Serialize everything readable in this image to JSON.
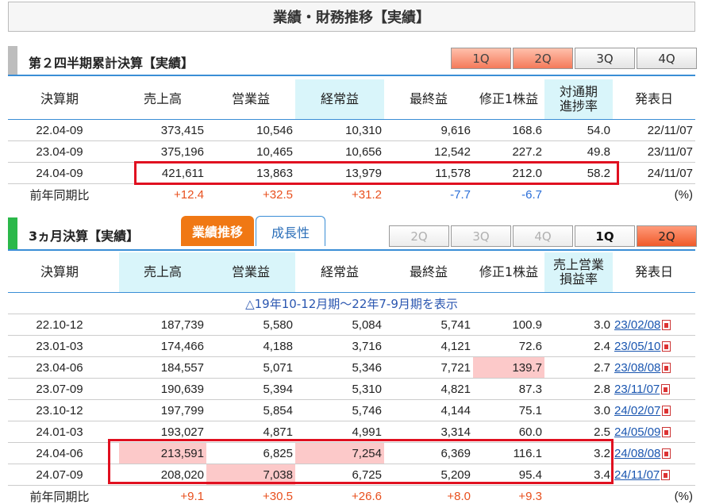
{
  "page_title": "業績・財務推移【実績】",
  "cumulative": {
    "title": "第２四半期累計決算【実績】",
    "tabs": [
      "1Q",
      "2Q",
      "3Q",
      "4Q"
    ],
    "headers": [
      "決算期",
      "売上高",
      "営業益",
      "経常益",
      "最終益",
      "修正1株益",
      "対通期\n進捗率",
      "発表日"
    ],
    "rows": [
      {
        "period": "22.04-09",
        "sales": "373,415",
        "op": "10,546",
        "ord": "10,310",
        "net": "9,616",
        "eps": "168.6",
        "prog": "54.0",
        "date": "22/11/07"
      },
      {
        "period": "23.04-09",
        "sales": "375,196",
        "op": "10,465",
        "ord": "10,656",
        "net": "12,542",
        "eps": "227.2",
        "prog": "49.8",
        "date": "23/11/07"
      },
      {
        "period": "24.04-09",
        "sales": "421,611",
        "op": "13,863",
        "ord": "13,979",
        "net": "11,578",
        "eps": "212.0",
        "prog": "58.2",
        "date": "24/11/07"
      }
    ],
    "yoy": {
      "label": "前年同期比",
      "sales": "+12.4",
      "op": "+32.5",
      "ord": "+31.2",
      "net": "-7.7",
      "eps": "-6.7",
      "unit": "(%)"
    }
  },
  "quarterly": {
    "title": "3ヵ月決算【実績】",
    "tab_a": "業績推移",
    "tab_b": "成長性",
    "tabs": [
      "2Q",
      "3Q",
      "4Q",
      "1Q",
      "2Q"
    ],
    "headers": [
      "決算期",
      "売上高",
      "営業益",
      "経常益",
      "最終益",
      "修正1株益",
      "売上営業\n損益率",
      "発表日"
    ],
    "notice": "△19年10-12月期～22年7-9月期を表示",
    "rows": [
      {
        "period": "22.10-12",
        "sales": "187,739",
        "op": "5,580",
        "ord": "5,084",
        "net": "5,741",
        "eps": "100.9",
        "margin": "3.0",
        "date": "23/02/08"
      },
      {
        "period": "23.01-03",
        "sales": "174,466",
        "op": "4,188",
        "ord": "3,716",
        "net": "4,121",
        "eps": "72.6",
        "margin": "2.4",
        "date": "23/05/10"
      },
      {
        "period": "23.04-06",
        "sales": "184,557",
        "op": "5,071",
        "ord": "5,346",
        "net": "7,721",
        "eps": "139.7",
        "margin": "2.7",
        "date": "23/08/08"
      },
      {
        "period": "23.07-09",
        "sales": "190,639",
        "op": "5,394",
        "ord": "5,310",
        "net": "4,821",
        "eps": "87.3",
        "margin": "2.8",
        "date": "23/11/07"
      },
      {
        "period": "23.10-12",
        "sales": "197,799",
        "op": "5,854",
        "ord": "5,746",
        "net": "4,144",
        "eps": "75.1",
        "margin": "3.0",
        "date": "24/02/07"
      },
      {
        "period": "24.01-03",
        "sales": "193,027",
        "op": "4,871",
        "ord": "4,991",
        "net": "3,314",
        "eps": "60.0",
        "margin": "2.5",
        "date": "24/05/09"
      },
      {
        "period": "24.04-06",
        "sales": "213,591",
        "op": "6,825",
        "ord": "7,254",
        "net": "6,369",
        "eps": "116.1",
        "margin": "3.2",
        "date": "24/08/08"
      },
      {
        "period": "24.07-09",
        "sales": "208,020",
        "op": "7,038",
        "ord": "6,725",
        "net": "5,209",
        "eps": "95.4",
        "margin": "3.4",
        "date": "24/11/07"
      }
    ],
    "yoy": {
      "label": "前年同期比",
      "sales": "+9.1",
      "op": "+30.5",
      "ord": "+26.6",
      "net": "+8.0",
      "eps": "+9.3",
      "unit": "(%)"
    }
  },
  "colors": {
    "accent_blue": "#3a8ed6",
    "highlight_cyan": "#d9f5fa",
    "pink": "#fcc9c9",
    "red_box": "#e01020",
    "orange_tab": "#f07814",
    "positive": "#e8501e",
    "negative": "#2a6ed8"
  }
}
